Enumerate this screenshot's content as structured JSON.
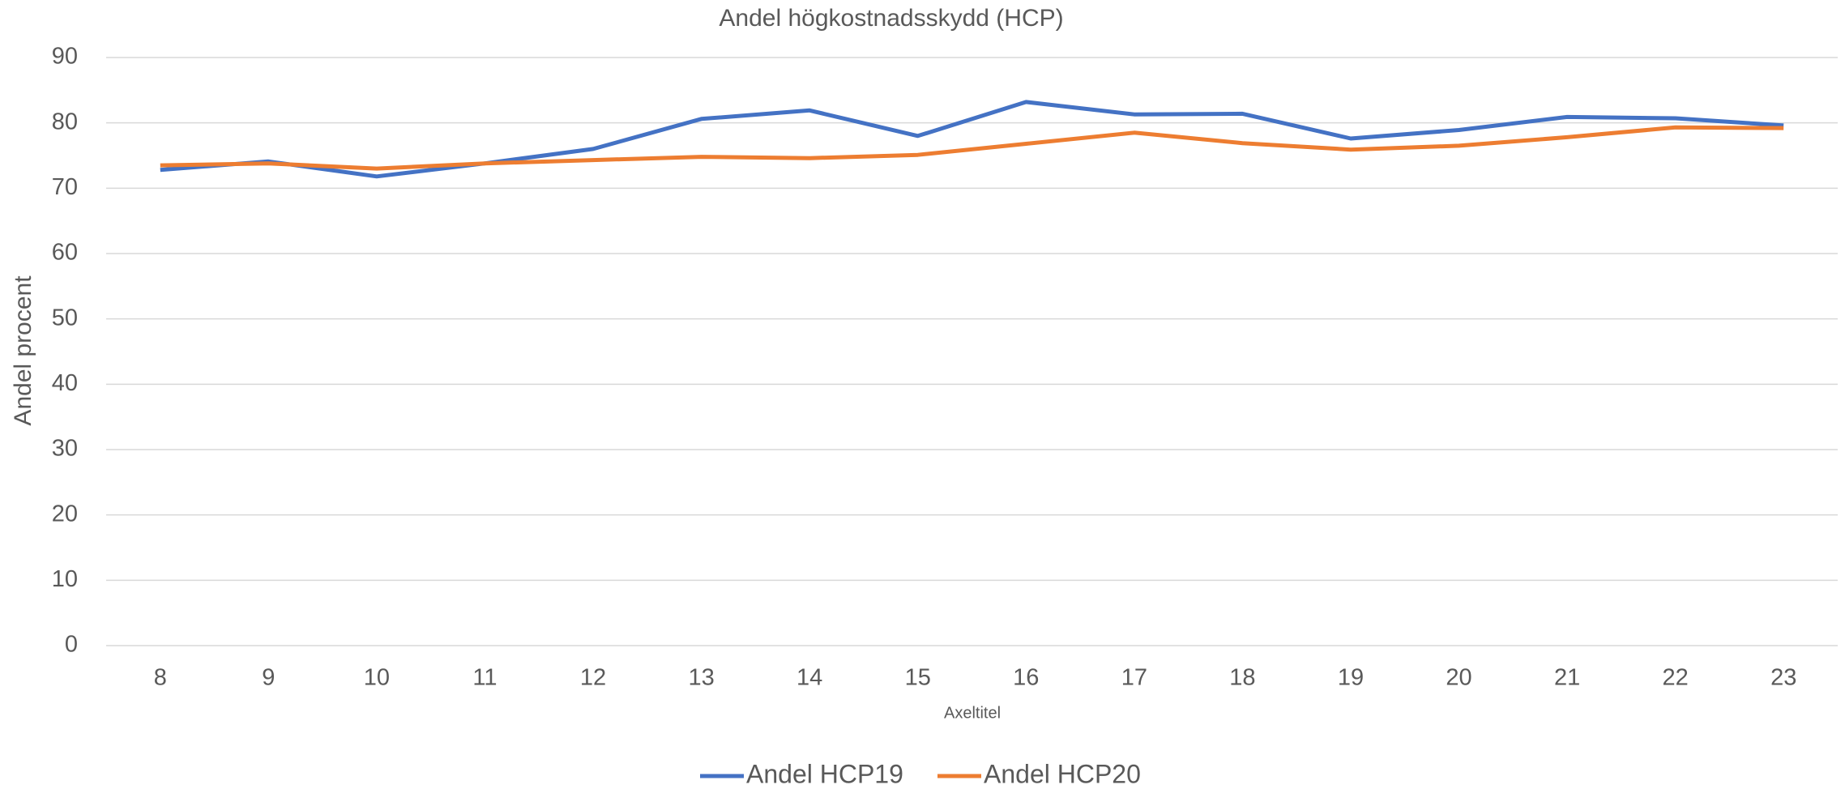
{
  "chart_data": {
    "type": "line",
    "title": "Andel högkostnadsskydd (HCP)",
    "x_label": "Axeltitel",
    "y_label": "Andel procent",
    "categories": [
      "8",
      "9",
      "10",
      "11",
      "12",
      "13",
      "14",
      "15",
      "16",
      "17",
      "18",
      "19",
      "20",
      "21",
      "22",
      "23"
    ],
    "series": [
      {
        "name": "Andel HCP19",
        "color": "#4472c4",
        "values": [
          72.8,
          74.1,
          71.8,
          73.8,
          76.0,
          80.6,
          81.9,
          78.0,
          83.2,
          81.3,
          81.4,
          77.6,
          78.9,
          80.9,
          80.7,
          79.6
        ]
      },
      {
        "name": "Andel HCP20",
        "color": "#ed7d31",
        "values": [
          73.5,
          73.8,
          73.0,
          73.8,
          74.3,
          74.8,
          74.6,
          75.1,
          76.8,
          78.5,
          76.9,
          75.9,
          76.5,
          77.8,
          79.3,
          79.2
        ]
      }
    ],
    "ylim": [
      0,
      90
    ],
    "yticks": [
      0,
      10,
      20,
      30,
      40,
      50,
      60,
      70,
      80,
      90
    ],
    "grid": true,
    "legend": "bottom"
  }
}
